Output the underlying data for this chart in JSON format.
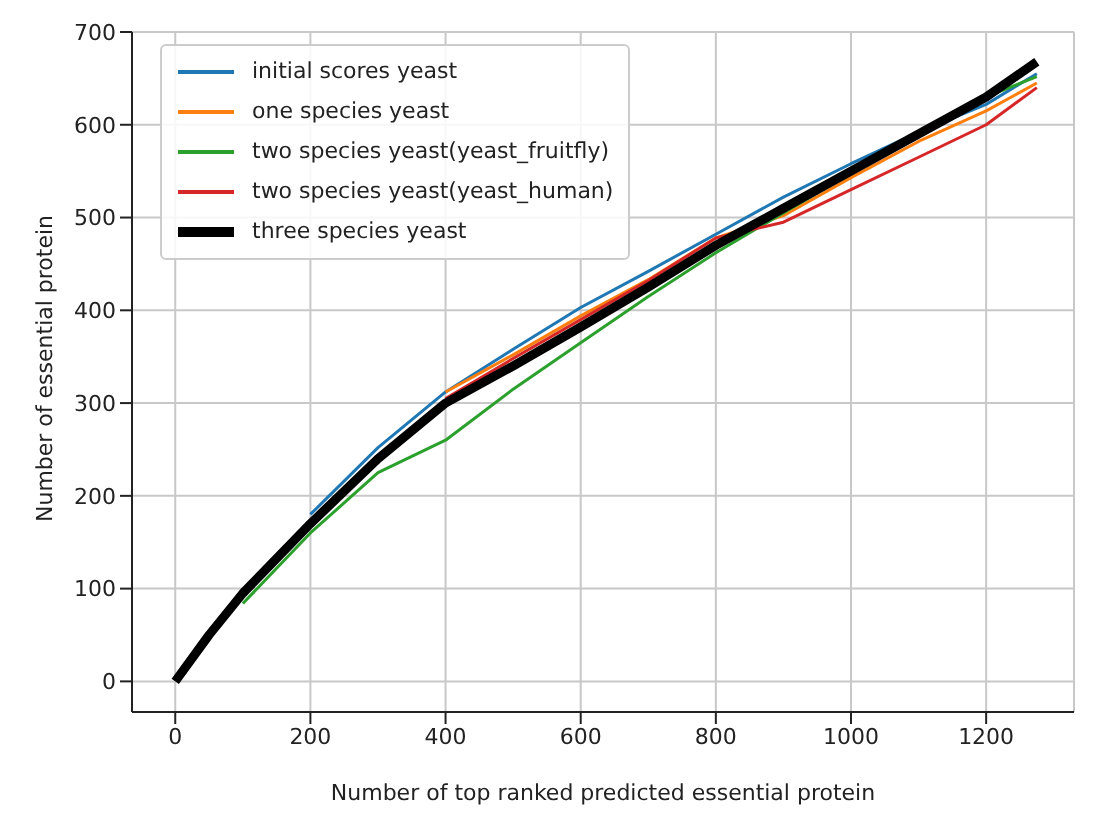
{
  "chart_data": {
    "type": "line",
    "xlabel": "Number of top ranked predicted essential protein",
    "ylabel": "Number of essential protein",
    "x": [
      0,
      50,
      100,
      200,
      300,
      400,
      500,
      600,
      700,
      800,
      900,
      1000,
      1100,
      1200,
      1275
    ],
    "xlim": [
      -64,
      1330
    ],
    "ylim": [
      -33,
      700
    ],
    "xticks": [
      0,
      200,
      400,
      600,
      800,
      1000,
      1200
    ],
    "yticks": [
      0,
      100,
      200,
      300,
      400,
      500,
      600,
      700
    ],
    "grid": true,
    "legend": "top left",
    "marker": "none",
    "line_style": "solid",
    "series": [
      {
        "name": "initial scores yeast",
        "color": "#1f77b4",
        "values": [
          null,
          null,
          null,
          180,
          252,
          312,
          358,
          403,
          442,
          482,
          522,
          558,
          592,
          622,
          655
        ]
      },
      {
        "name": "one species yeast",
        "color": "#ff7f0e",
        "values": [
          null,
          null,
          null,
          null,
          null,
          312,
          352,
          394,
          433,
          478,
          502,
          543,
          582,
          615,
          645
        ]
      },
      {
        "name": "two species yeast(yeast_fruitfly)",
        "color": "#2ca02c",
        "values": [
          null,
          null,
          84,
          160,
          225,
          260,
          315,
          365,
          415,
          462,
          505,
          548,
          590,
          630,
          652
        ]
      },
      {
        "name": "two species yeast(yeast_human)",
        "color": "#d62728",
        "values": [
          null,
          null,
          null,
          null,
          null,
          305,
          348,
          390,
          432,
          478,
          495,
          530,
          565,
          600,
          640
        ]
      },
      {
        "name": "three species yeast",
        "color": "#000000",
        "values": [
          0,
          50,
          95,
          170,
          240,
          300,
          340,
          382,
          425,
          470,
          510,
          550,
          590,
          630,
          668
        ]
      }
    ]
  }
}
